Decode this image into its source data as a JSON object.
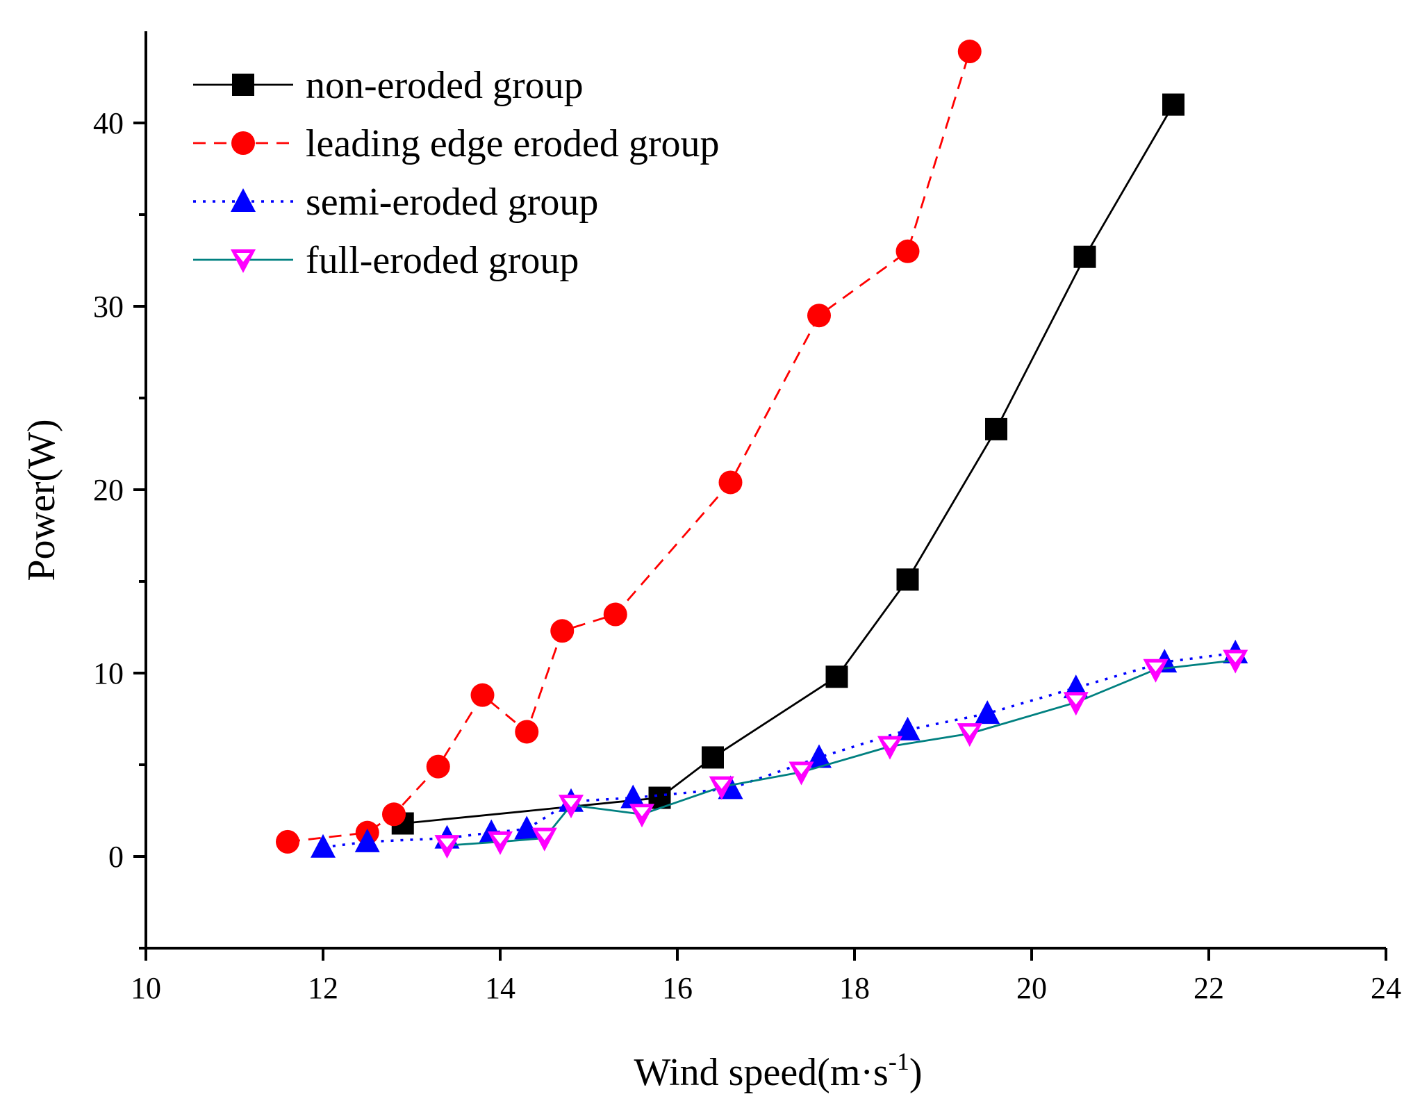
{
  "chart_data": {
    "type": "line",
    "title": "",
    "xlabel": "Wind speed(m·s",
    "xlabel_sup": "-1",
    "xlabel_close": ")",
    "ylabel": "Power(W)",
    "xlim": [
      10,
      24
    ],
    "ylim": [
      -5,
      45
    ],
    "x_ticks": [
      10,
      12,
      14,
      16,
      18,
      20,
      22,
      24
    ],
    "x_tick_labels": [
      "10",
      "12",
      "14",
      "16",
      "18",
      "20",
      "22",
      "24"
    ],
    "y_ticks": [
      0,
      10,
      20,
      30,
      40
    ],
    "y_tick_labels": [
      "0",
      "10",
      "20",
      "30",
      "40"
    ],
    "y_minor_ticks": [
      -5,
      5,
      15,
      25,
      35
    ],
    "grid": false,
    "legend_position": "top-left",
    "series": [
      {
        "name": "non-eroded group",
        "color": "#000000",
        "line_style": "solid",
        "marker": "square",
        "x": [
          12.9,
          15.8,
          16.4,
          17.8,
          18.6,
          19.6,
          20.6,
          21.6
        ],
        "y": [
          1.8,
          3.2,
          5.4,
          9.8,
          15.1,
          23.3,
          32.7,
          41.0
        ]
      },
      {
        "name": "leading edge eroded group",
        "color": "#ff0000",
        "line_style": "dashed",
        "marker": "circle",
        "x": [
          11.6,
          12.5,
          12.8,
          13.3,
          13.8,
          14.3,
          14.7,
          15.3,
          16.6,
          17.6,
          18.6,
          19.3
        ],
        "y": [
          0.8,
          1.3,
          2.3,
          4.9,
          8.8,
          6.8,
          12.3,
          13.2,
          20.4,
          29.5,
          33.0,
          43.9
        ]
      },
      {
        "name": "semi-eroded group",
        "color": "#0000ff",
        "line_style": "dotted",
        "marker": "triangle-up",
        "x": [
          12.0,
          12.5,
          13.4,
          13.9,
          14.3,
          14.8,
          15.5,
          16.6,
          17.6,
          18.6,
          19.5,
          20.5,
          21.5,
          22.3
        ],
        "y": [
          0.5,
          0.8,
          1.0,
          1.3,
          1.5,
          3.0,
          3.2,
          3.7,
          5.4,
          6.9,
          7.8,
          9.2,
          10.6,
          11.1
        ]
      },
      {
        "name": "full-eroded group",
        "color": "#ff00ff",
        "line_color": "#008080",
        "line_style": "solid",
        "marker": "triangle-down",
        "x": [
          13.4,
          14.0,
          14.5,
          14.8,
          15.6,
          16.5,
          17.4,
          18.4,
          19.3,
          20.5,
          21.4,
          22.3
        ],
        "y": [
          0.6,
          0.8,
          1.0,
          2.8,
          2.3,
          3.8,
          4.6,
          6.0,
          6.7,
          8.4,
          10.2,
          10.7
        ]
      }
    ]
  }
}
